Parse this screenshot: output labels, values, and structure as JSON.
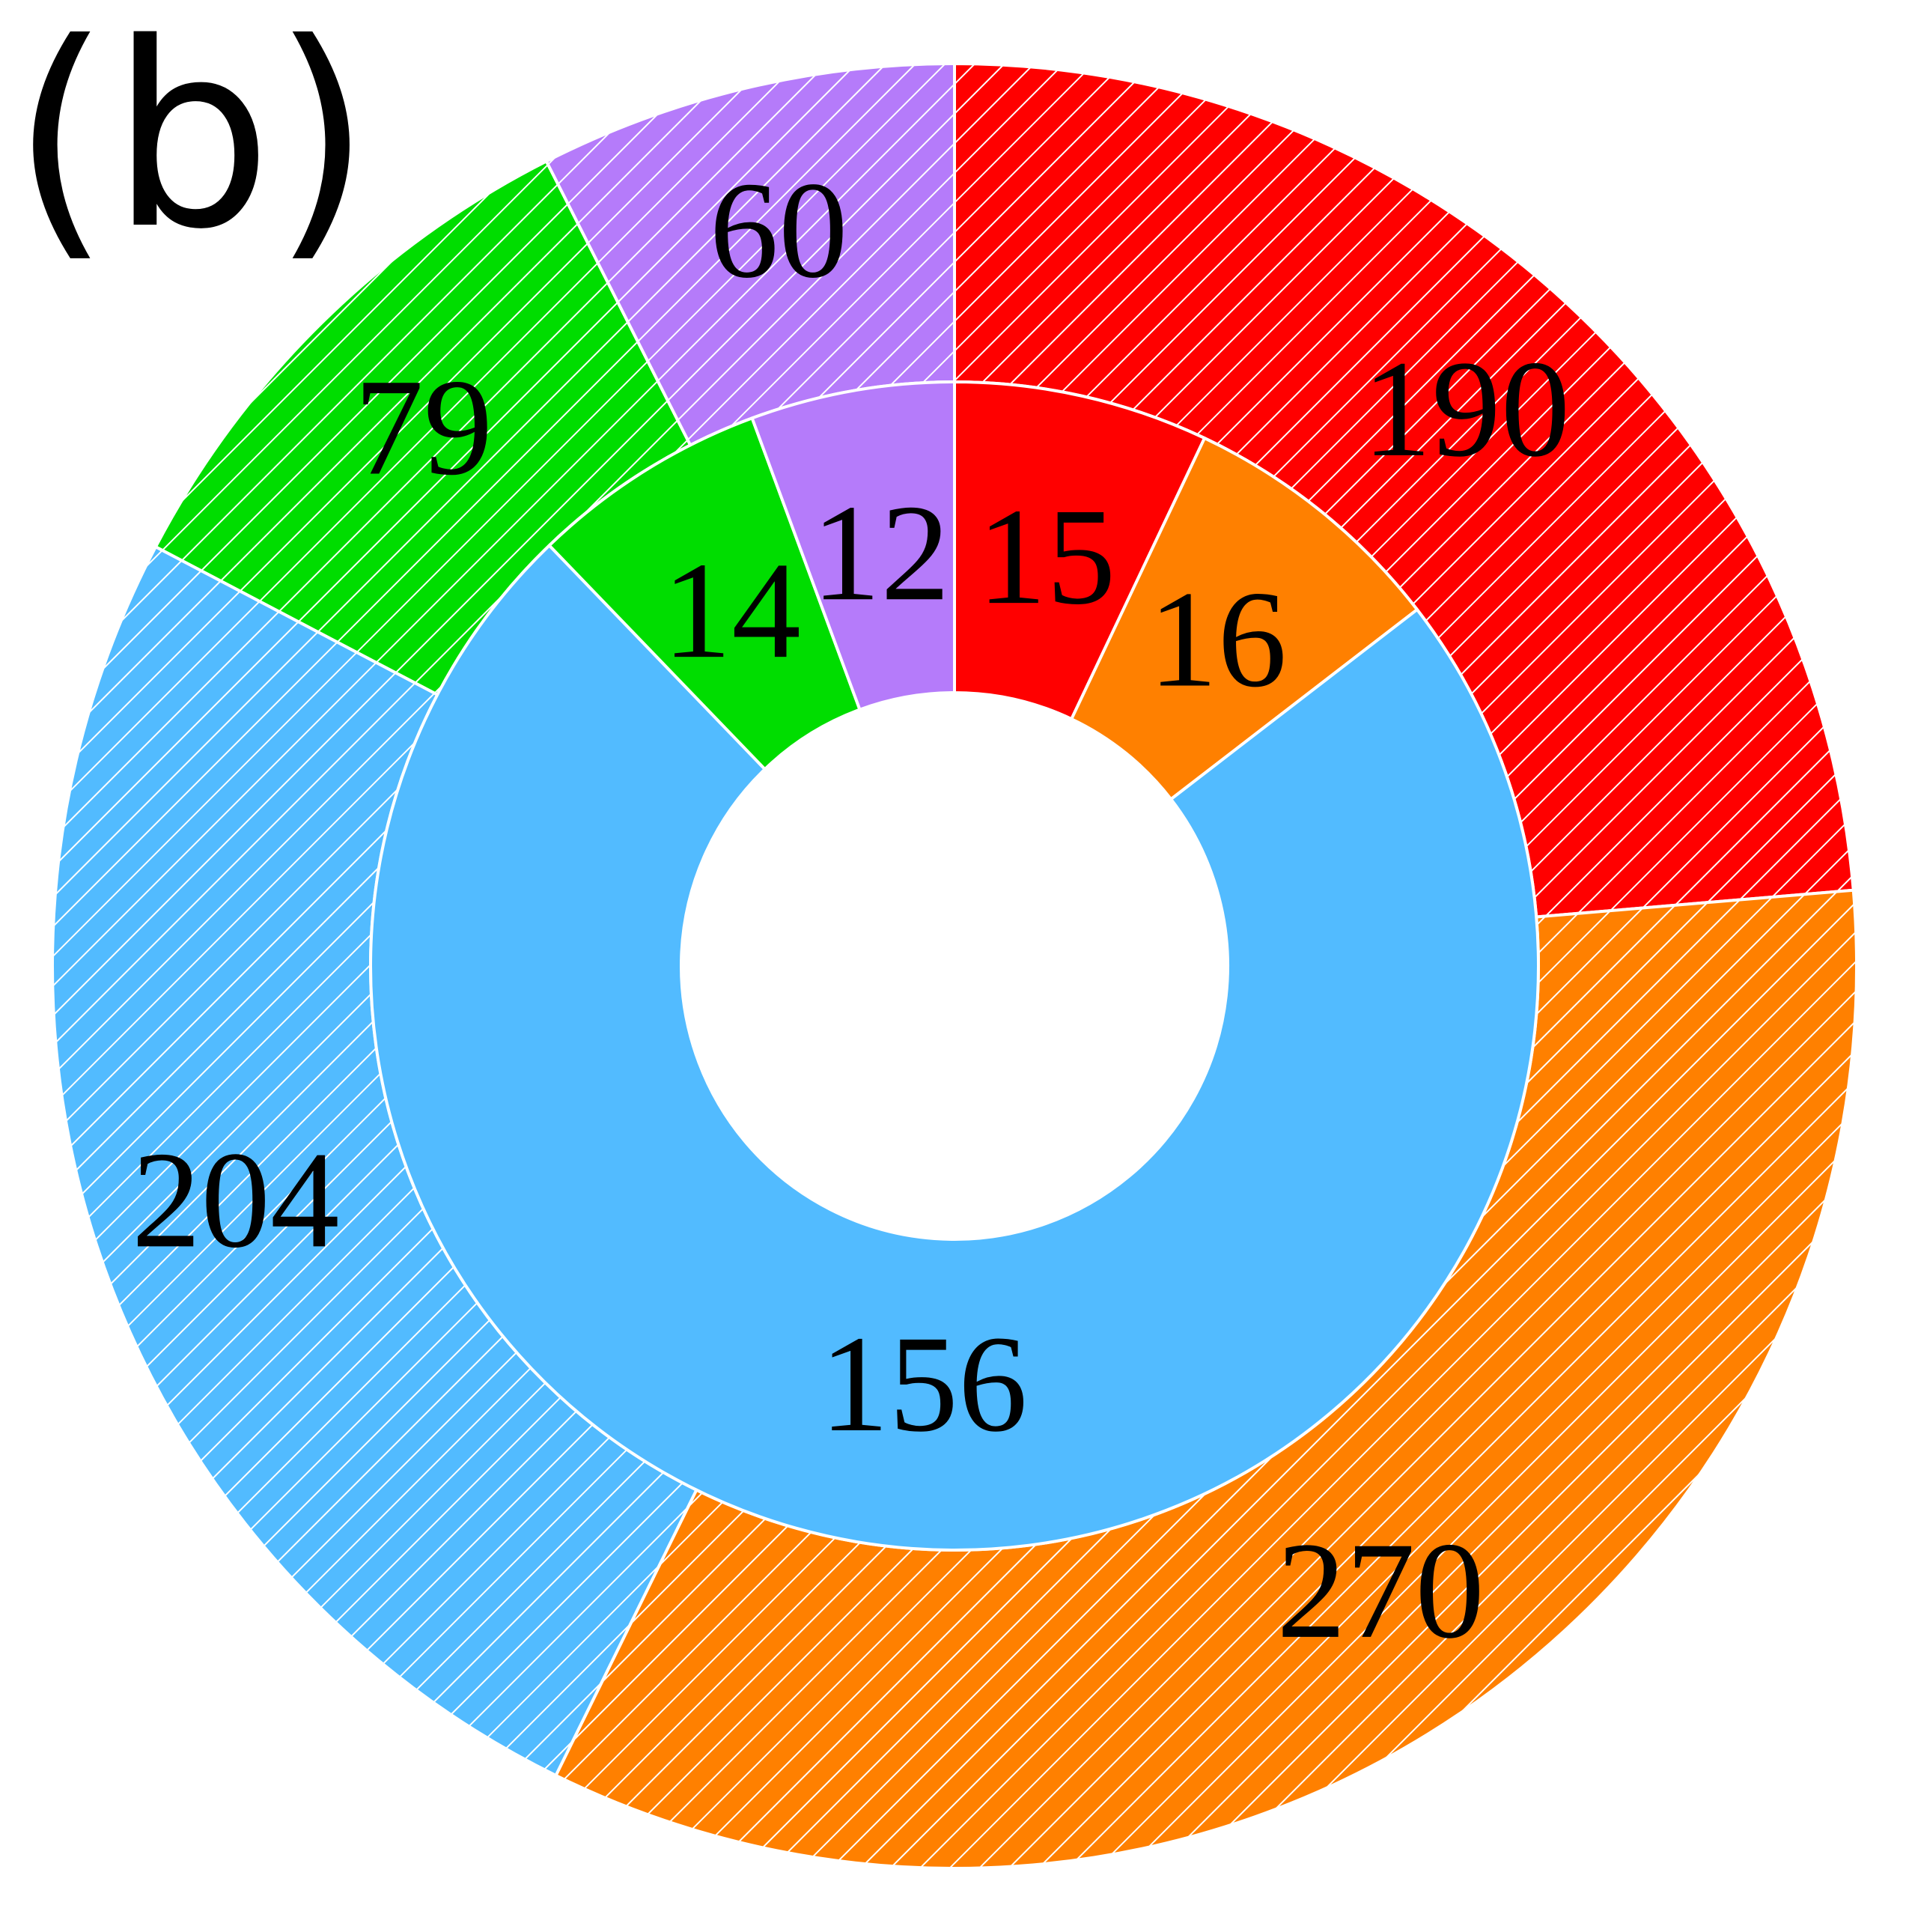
{
  "panel_label": "(b)",
  "chart_data": {
    "type": "pie",
    "variant": "nested-donut",
    "start": "top",
    "direction": "clockwise",
    "hatching": "outer ring diagonal white hatch",
    "colors": {
      "red": "#ff0000",
      "orange": "#ff8000",
      "blue": "#52bbff",
      "green": "#00dd00",
      "purple": "#b57bfa",
      "hatch": "#ffffff"
    },
    "outer_ring": {
      "slices": [
        {
          "value": 190,
          "label": "190",
          "color": "red"
        },
        {
          "value": 270,
          "label": "270",
          "color": "orange"
        },
        {
          "value": 204,
          "label": "204",
          "color": "blue"
        },
        {
          "value": 79,
          "label": "79",
          "color": "green"
        },
        {
          "value": 60,
          "label": "60",
          "color": "purple"
        }
      ]
    },
    "inner_ring": {
      "slices": [
        {
          "value": 15,
          "label": "15",
          "color": "red"
        },
        {
          "value": 16,
          "label": "16",
          "color": "orange"
        },
        {
          "value": 156,
          "label": "156",
          "color": "blue"
        },
        {
          "value": 14,
          "label": "14",
          "color": "green"
        },
        {
          "value": 12,
          "label": "12",
          "color": "purple"
        }
      ]
    }
  }
}
